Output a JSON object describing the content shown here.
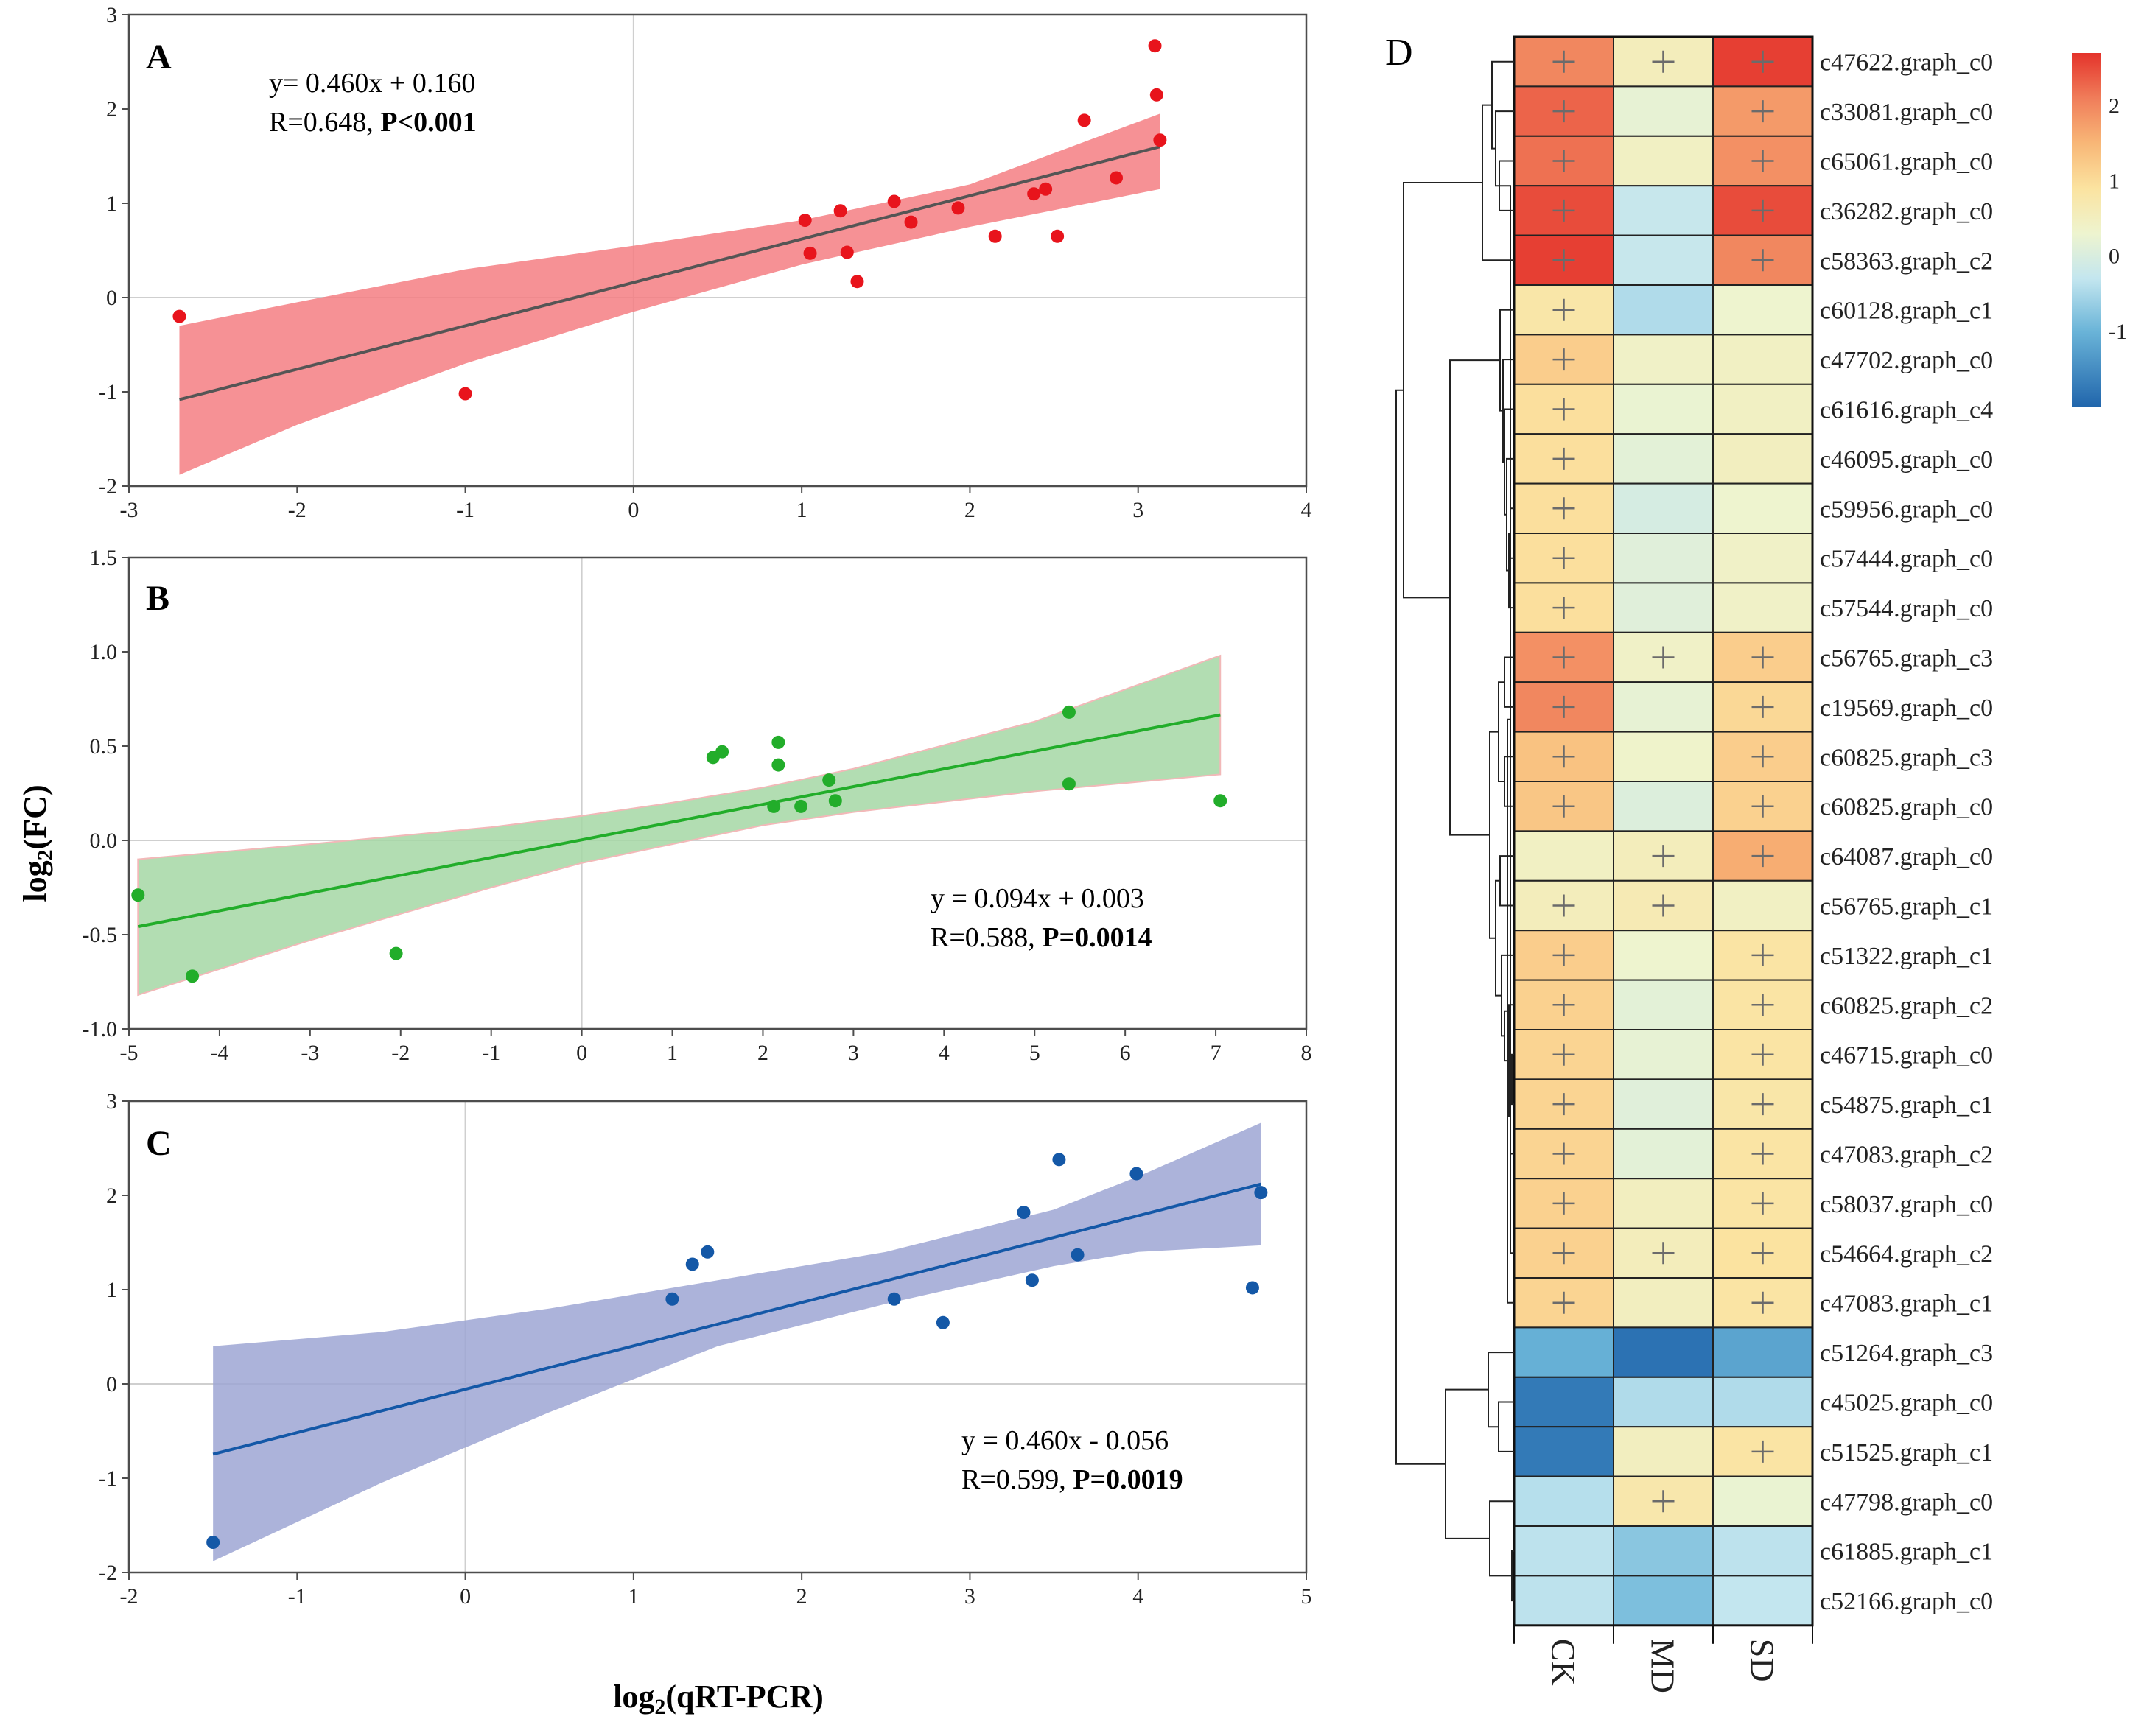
{
  "figure": {
    "y_axis_label_base": "log",
    "y_axis_label_sub": "2",
    "y_axis_label_rest": "(FC)",
    "x_axis_label_base": "log",
    "x_axis_label_sub": "2",
    "x_axis_label_rest": "(qRT-PCR)"
  },
  "chart_data": [
    {
      "type": "scatter",
      "panel": "A",
      "color": "#e8141c",
      "band_color": "#f47e82",
      "line_color": "#555555",
      "xlim": [
        -3,
        4
      ],
      "ylim": [
        -2,
        3
      ],
      "xticks": [
        -3,
        -2,
        -1,
        0,
        1,
        2,
        3,
        4
      ],
      "yticks": [
        -2,
        -1,
        0,
        1,
        2,
        3
      ],
      "xtick_labels": [
        "-3",
        "-2",
        "-1",
        "0",
        "1",
        "2",
        "3",
        "4"
      ],
      "ytick_labels": [
        "-2",
        "-1",
        "0",
        "1",
        "2",
        "3"
      ],
      "equation": "y= 0.460x + 0.160",
      "r_text": "R=0.648, ",
      "p_text": "P<0.001",
      "fit": {
        "slope": 0.46,
        "intercept": 0.16,
        "x_range": [
          -2.7,
          3.13
        ]
      },
      "band": {
        "upper": [
          [
            -2.7,
            -0.3
          ],
          [
            -2.0,
            -0.05
          ],
          [
            -1.0,
            0.3
          ],
          [
            0.0,
            0.55
          ],
          [
            1.0,
            0.82
          ],
          [
            2.0,
            1.2
          ],
          [
            3.13,
            1.95
          ]
        ],
        "lower": [
          [
            -2.7,
            -1.88
          ],
          [
            -2.0,
            -1.35
          ],
          [
            -1.0,
            -0.7
          ],
          [
            0.0,
            -0.15
          ],
          [
            1.0,
            0.35
          ],
          [
            2.0,
            0.75
          ],
          [
            3.13,
            1.15
          ]
        ]
      },
      "x": [
        -2.7,
        -1.0,
        1.02,
        1.05,
        1.23,
        1.27,
        1.33,
        1.55,
        1.65,
        1.93,
        2.15,
        2.38,
        2.45,
        2.52,
        2.68,
        2.87,
        3.1,
        3.11,
        3.13
      ],
      "y": [
        -0.2,
        -1.02,
        0.82,
        0.47,
        0.92,
        0.48,
        0.17,
        1.02,
        0.8,
        0.95,
        0.65,
        1.1,
        1.15,
        0.65,
        1.88,
        1.27,
        2.67,
        2.15,
        1.67
      ],
      "annotation_position": "top-left"
    },
    {
      "type": "scatter",
      "panel": "B",
      "color": "#22ad2a",
      "band_color": "#a4d7a4",
      "line_color": "#22ad2a",
      "xlim": [
        -5,
        8
      ],
      "ylim": [
        -1.0,
        1.5
      ],
      "xticks": [
        -5,
        -4,
        -3,
        -2,
        -1,
        0,
        1,
        2,
        3,
        4,
        5,
        6,
        7,
        8
      ],
      "yticks": [
        -1.0,
        -0.5,
        0.0,
        0.5,
        1.0,
        1.5
      ],
      "xtick_labels": [
        "-5",
        "-4",
        "-3",
        "-2",
        "-1",
        "0",
        "1",
        "2",
        "3",
        "4",
        "5",
        "6",
        "7",
        "8"
      ],
      "ytick_labels": [
        "-1.0",
        "-0.5",
        "0.0",
        "0.5",
        "1.0",
        "1.5"
      ],
      "equation": "y = 0.094x + 0.003",
      "r_text": "R=0.588, ",
      "p_text": "P=0.0014",
      "fit": {
        "slope": 0.094,
        "intercept": 0.003,
        "x_range": [
          -4.9,
          7.05
        ]
      },
      "band": {
        "upper": [
          [
            -4.9,
            -0.1
          ],
          [
            -3.0,
            -0.02
          ],
          [
            -1.0,
            0.07
          ],
          [
            0.0,
            0.13
          ],
          [
            1.0,
            0.2
          ],
          [
            2.0,
            0.28
          ],
          [
            3.0,
            0.38
          ],
          [
            5.0,
            0.63
          ],
          [
            7.05,
            0.98
          ]
        ],
        "lower": [
          [
            -4.9,
            -0.82
          ],
          [
            -3.0,
            -0.53
          ],
          [
            -1.0,
            -0.25
          ],
          [
            0.0,
            -0.12
          ],
          [
            1.0,
            -0.02
          ],
          [
            2.0,
            0.08
          ],
          [
            3.0,
            0.15
          ],
          [
            5.0,
            0.26
          ],
          [
            7.05,
            0.35
          ]
        ]
      },
      "x": [
        -4.9,
        -4.3,
        -2.05,
        1.45,
        1.55,
        2.12,
        2.17,
        2.17,
        2.42,
        2.73,
        2.8,
        5.38,
        5.38,
        7.05
      ],
      "y": [
        -0.29,
        -0.72,
        -0.6,
        0.44,
        0.47,
        0.18,
        0.4,
        0.52,
        0.18,
        0.32,
        0.21,
        0.68,
        0.3,
        0.21
      ],
      "annotation_position": "bottom-right"
    },
    {
      "type": "scatter",
      "panel": "C",
      "color": "#1458a7",
      "band_color": "#9da6d4",
      "line_color": "#1458a7",
      "xlim": [
        -2,
        5
      ],
      "ylim": [
        -2,
        3
      ],
      "xticks": [
        -2,
        -1,
        0,
        1,
        2,
        3,
        4,
        5
      ],
      "yticks": [
        -2,
        -1,
        0,
        1,
        2,
        3
      ],
      "xtick_labels": [
        "-2",
        "-1",
        "0",
        "1",
        "2",
        "3",
        "4",
        "5"
      ],
      "ytick_labels": [
        "-2",
        "-1",
        "0",
        "1",
        "2",
        "3"
      ],
      "equation": "y = 0.460x - 0.056",
      "r_text": "R=0.599, ",
      "p_text": "P=0.0019",
      "fit": {
        "slope": 0.46,
        "intercept": -0.056,
        "x_range": [
          -1.5,
          4.73
        ]
      },
      "band": {
        "upper": [
          [
            -1.5,
            0.4
          ],
          [
            -0.5,
            0.55
          ],
          [
            0.5,
            0.8
          ],
          [
            1.5,
            1.1
          ],
          [
            2.5,
            1.4
          ],
          [
            3.5,
            1.85
          ],
          [
            4.0,
            2.2
          ],
          [
            4.73,
            2.77
          ]
        ],
        "lower": [
          [
            -1.5,
            -1.88
          ],
          [
            -0.5,
            -1.05
          ],
          [
            0.5,
            -0.3
          ],
          [
            1.5,
            0.4
          ],
          [
            2.5,
            0.85
          ],
          [
            3.5,
            1.25
          ],
          [
            4.0,
            1.4
          ],
          [
            4.73,
            1.47
          ]
        ]
      },
      "x": [
        -1.5,
        1.23,
        1.35,
        1.44,
        2.55,
        2.84,
        3.32,
        3.37,
        3.53,
        3.64,
        3.99,
        4.68,
        4.73
      ],
      "y": [
        -1.68,
        0.9,
        1.27,
        1.4,
        0.9,
        0.65,
        1.82,
        1.1,
        2.38,
        1.37,
        2.23,
        1.02,
        2.03
      ],
      "annotation_position": "bottom-right"
    },
    {
      "type": "heatmap",
      "panel": "D",
      "columns": [
        "CK",
        "MD",
        "SD"
      ],
      "rows": [
        "c47622.graph_c0",
        "c33081.graph_c0",
        "c65061.graph_c0",
        "c36282.graph_c0",
        "c58363.graph_c2",
        "c60128.graph_c1",
        "c47702.graph_c0",
        "c61616.graph_c4",
        "c46095.graph_c0",
        "c59956.graph_c0",
        "c57444.graph_c0",
        "c57544.graph_c0",
        "c56765.graph_c3",
        "c19569.graph_c0",
        "c60825.graph_c3",
        "c60825.graph_c0",
        "c64087.graph_c0",
        "c56765.graph_c1",
        "c51322.graph_c1",
        "c60825.graph_c2",
        "c46715.graph_c0",
        "c54875.graph_c1",
        "c47083.graph_c2",
        "c58037.graph_c0",
        "c54664.graph_c2",
        "c47083.graph_c1",
        "c51264.graph_c3",
        "c45025.graph_c0",
        "c51525.graph_c1",
        "c47798.graph_c0",
        "c61885.graph_c1",
        "c52166.graph_c0"
      ],
      "values": [
        [
          2.0,
          0.55,
          2.6
        ],
        [
          2.3,
          0.2,
          1.8
        ],
        [
          2.2,
          0.45,
          1.9
        ],
        [
          2.5,
          -0.25,
          2.5
        ],
        [
          2.6,
          -0.25,
          2.0
        ],
        [
          0.8,
          -0.45,
          0.3
        ],
        [
          1.2,
          0.4,
          0.45
        ],
        [
          0.95,
          0.25,
          0.45
        ],
        [
          0.95,
          0.15,
          0.5
        ],
        [
          0.95,
          -0.05,
          0.3
        ],
        [
          0.95,
          0.1,
          0.4
        ],
        [
          0.95,
          0.1,
          0.4
        ],
        [
          1.9,
          0.4,
          1.2
        ],
        [
          2.0,
          0.2,
          1.05
        ],
        [
          1.35,
          0.35,
          1.2
        ],
        [
          1.3,
          0.05,
          1.15
        ],
        [
          0.45,
          0.55,
          1.6
        ],
        [
          0.55,
          0.65,
          0.45
        ],
        [
          1.2,
          0.3,
          0.85
        ],
        [
          1.15,
          0.15,
          0.85
        ],
        [
          1.1,
          0.2,
          0.85
        ],
        [
          1.1,
          0.1,
          0.8
        ],
        [
          1.1,
          0.15,
          0.85
        ],
        [
          1.15,
          0.5,
          0.85
        ],
        [
          1.15,
          0.55,
          0.9
        ],
        [
          1.1,
          0.5,
          0.85
        ],
        [
          -1.05,
          -1.85,
          -1.2
        ],
        [
          -1.75,
          -0.45,
          -0.45
        ],
        [
          -1.75,
          0.5,
          0.85
        ],
        [
          -0.4,
          0.75,
          0.25
        ],
        [
          -0.35,
          -0.75,
          -0.35
        ],
        [
          -0.35,
          -0.85,
          -0.3
        ]
      ],
      "plus": [
        [
          1,
          1,
          1
        ],
        [
          1,
          0,
          1
        ],
        [
          1,
          0,
          1
        ],
        [
          1,
          0,
          1
        ],
        [
          1,
          0,
          1
        ],
        [
          1,
          0,
          0
        ],
        [
          1,
          0,
          0
        ],
        [
          1,
          0,
          0
        ],
        [
          1,
          0,
          0
        ],
        [
          1,
          0,
          0
        ],
        [
          1,
          0,
          0
        ],
        [
          1,
          0,
          0
        ],
        [
          1,
          1,
          1
        ],
        [
          1,
          0,
          1
        ],
        [
          1,
          0,
          1
        ],
        [
          1,
          0,
          1
        ],
        [
          0,
          1,
          1
        ],
        [
          1,
          1,
          0
        ],
        [
          1,
          0,
          1
        ],
        [
          1,
          0,
          1
        ],
        [
          1,
          0,
          1
        ],
        [
          1,
          0,
          1
        ],
        [
          1,
          0,
          1
        ],
        [
          1,
          0,
          1
        ],
        [
          1,
          1,
          1
        ],
        [
          1,
          0,
          1
        ],
        [
          0,
          0,
          0
        ],
        [
          0,
          0,
          0
        ],
        [
          0,
          0,
          1
        ],
        [
          0,
          1,
          0
        ],
        [
          0,
          0,
          0
        ],
        [
          0,
          0,
          0
        ]
      ],
      "colorbar": {
        "min": -2,
        "max": 2.7,
        "ticks": [
          2,
          1,
          0,
          -1
        ],
        "tick_labels": [
          "2",
          "1",
          "0",
          "-1"
        ]
      },
      "colorscale": [
        [
          -2.0,
          "#2166ac"
        ],
        [
          -1.0,
          "#6ab4d8"
        ],
        [
          -0.3,
          "#c3e6ef"
        ],
        [
          0.3,
          "#eef4cf"
        ],
        [
          0.9,
          "#fbe3a0"
        ],
        [
          1.5,
          "#f8b777"
        ],
        [
          2.1,
          "#f07d5a"
        ],
        [
          2.7,
          "#e4332b"
        ]
      ]
    }
  ]
}
